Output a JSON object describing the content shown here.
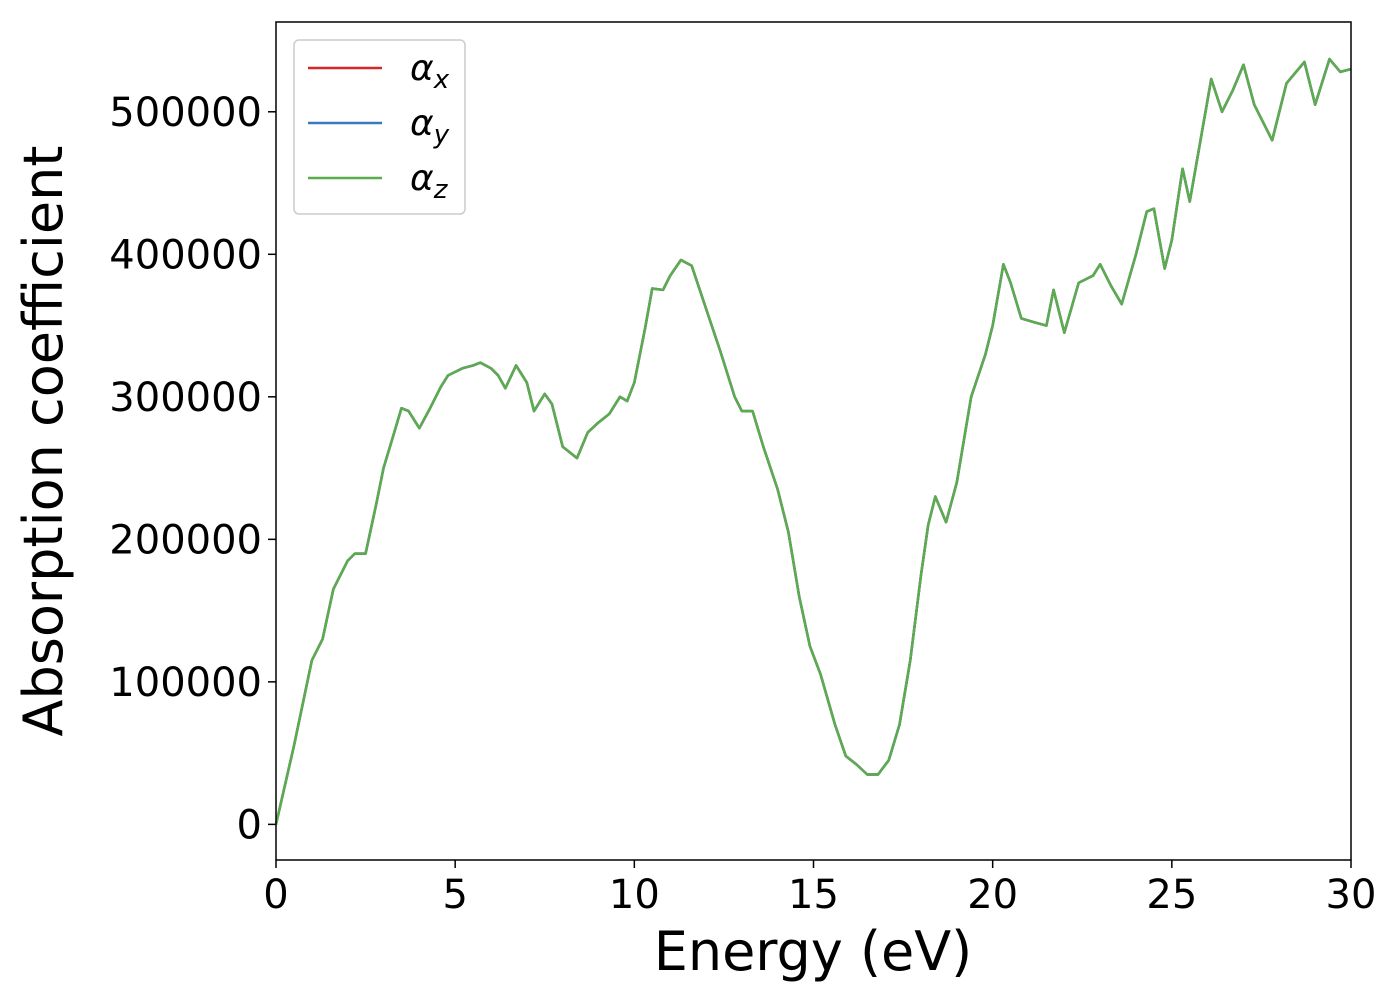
{
  "chart_data": {
    "type": "line",
    "xlabel": "Energy (eV)",
    "ylabel": "Absorption coefficient",
    "x": [
      0,
      0.5,
      1.0,
      1.3,
      1.6,
      2.0,
      2.2,
      2.5,
      2.8,
      3.0,
      3.3,
      3.5,
      3.7,
      4.0,
      4.3,
      4.6,
      4.8,
      5.2,
      5.5,
      5.7,
      6.0,
      6.2,
      6.4,
      6.7,
      7.0,
      7.2,
      7.5,
      7.7,
      8.0,
      8.4,
      8.7,
      9.0,
      9.3,
      9.6,
      9.8,
      10.0,
      10.3,
      10.5,
      10.8,
      11.0,
      11.3,
      11.6,
      12.0,
      12.4,
      12.8,
      13.0,
      13.3,
      13.6,
      14.0,
      14.3,
      14.6,
      14.9,
      15.2,
      15.6,
      15.9,
      16.2,
      16.5,
      16.8,
      17.1,
      17.4,
      17.7,
      18.0,
      18.2,
      18.4,
      18.7,
      19.0,
      19.4,
      19.8,
      20.0,
      20.3,
      20.5,
      20.8,
      21.2,
      21.5,
      21.7,
      22.0,
      22.4,
      22.8,
      23.0,
      23.3,
      23.6,
      24.0,
      24.3,
      24.5,
      24.8,
      25.0,
      25.3,
      25.5,
      25.8,
      26.1,
      26.4,
      26.7,
      27.0,
      27.3,
      27.8,
      28.2,
      28.7,
      29.0,
      29.4,
      29.7,
      30.0
    ],
    "series": [
      {
        "name": "αx",
        "color": "#d62728",
        "values": [
          0,
          55000,
          115000,
          130000,
          165000,
          185000,
          190000,
          190000,
          225000,
          250000,
          275000,
          292000,
          290000,
          278000,
          292000,
          307000,
          315000,
          320000,
          322000,
          324000,
          320000,
          315000,
          306000,
          322000,
          310000,
          290000,
          302000,
          295000,
          265000,
          257000,
          275000,
          282000,
          288000,
          300000,
          297000,
          310000,
          348000,
          376000,
          375000,
          385000,
          396000,
          392000,
          362000,
          332000,
          300000,
          290000,
          290000,
          265000,
          235000,
          205000,
          160000,
          125000,
          105000,
          70000,
          48000,
          42000,
          35000,
          35000,
          45000,
          70000,
          115000,
          175000,
          210000,
          230000,
          212000,
          240000,
          300000,
          330000,
          350000,
          393000,
          380000,
          355000,
          352000,
          350000,
          375000,
          345000,
          380000,
          385000,
          393000,
          378000,
          365000,
          400000,
          430000,
          432000,
          390000,
          410000,
          460000,
          437000,
          480000,
          523000,
          500000,
          515000,
          533000,
          505000,
          480000,
          520000,
          535000,
          505000,
          537000,
          528000,
          530000
        ]
      },
      {
        "name": "αy",
        "color": "#3a7bbf",
        "values": [
          0,
          55000,
          115000,
          130000,
          165000,
          185000,
          190000,
          190000,
          225000,
          250000,
          275000,
          292000,
          290000,
          278000,
          292000,
          307000,
          315000,
          320000,
          322000,
          324000,
          320000,
          315000,
          306000,
          322000,
          310000,
          290000,
          302000,
          295000,
          265000,
          257000,
          275000,
          282000,
          288000,
          300000,
          297000,
          310000,
          348000,
          376000,
          375000,
          385000,
          396000,
          392000,
          362000,
          332000,
          300000,
          290000,
          290000,
          265000,
          235000,
          205000,
          160000,
          125000,
          105000,
          70000,
          48000,
          42000,
          35000,
          35000,
          45000,
          70000,
          115000,
          175000,
          210000,
          230000,
          212000,
          240000,
          300000,
          330000,
          350000,
          393000,
          380000,
          355000,
          352000,
          350000,
          375000,
          345000,
          380000,
          385000,
          393000,
          378000,
          365000,
          400000,
          430000,
          432000,
          390000,
          410000,
          460000,
          437000,
          480000,
          523000,
          500000,
          515000,
          533000,
          505000,
          480000,
          520000,
          535000,
          505000,
          537000,
          528000,
          530000
        ]
      },
      {
        "name": "αz",
        "color": "#5aac4f",
        "values": [
          0,
          55000,
          115000,
          130000,
          165000,
          185000,
          190000,
          190000,
          225000,
          250000,
          275000,
          292000,
          290000,
          278000,
          292000,
          307000,
          315000,
          320000,
          322000,
          324000,
          320000,
          315000,
          306000,
          322000,
          310000,
          290000,
          302000,
          295000,
          265000,
          257000,
          275000,
          282000,
          288000,
          300000,
          297000,
          310000,
          348000,
          376000,
          375000,
          385000,
          396000,
          392000,
          362000,
          332000,
          300000,
          290000,
          290000,
          265000,
          235000,
          205000,
          160000,
          125000,
          105000,
          70000,
          48000,
          42000,
          35000,
          35000,
          45000,
          70000,
          115000,
          175000,
          210000,
          230000,
          212000,
          240000,
          300000,
          330000,
          350000,
          393000,
          380000,
          355000,
          352000,
          350000,
          375000,
          345000,
          380000,
          385000,
          393000,
          378000,
          365000,
          400000,
          430000,
          432000,
          390000,
          410000,
          460000,
          437000,
          480000,
          523000,
          500000,
          515000,
          533000,
          505000,
          480000,
          520000,
          535000,
          505000,
          537000,
          528000,
          530000
        ]
      }
    ],
    "xlim": [
      0,
      30
    ],
    "xticks": [
      0,
      5,
      10,
      15,
      20,
      25,
      30
    ],
    "ylim": [
      -25000,
      563000
    ],
    "yticks": [
      0,
      100000,
      200000,
      300000,
      400000,
      500000
    ],
    "legend": "upper left"
  }
}
